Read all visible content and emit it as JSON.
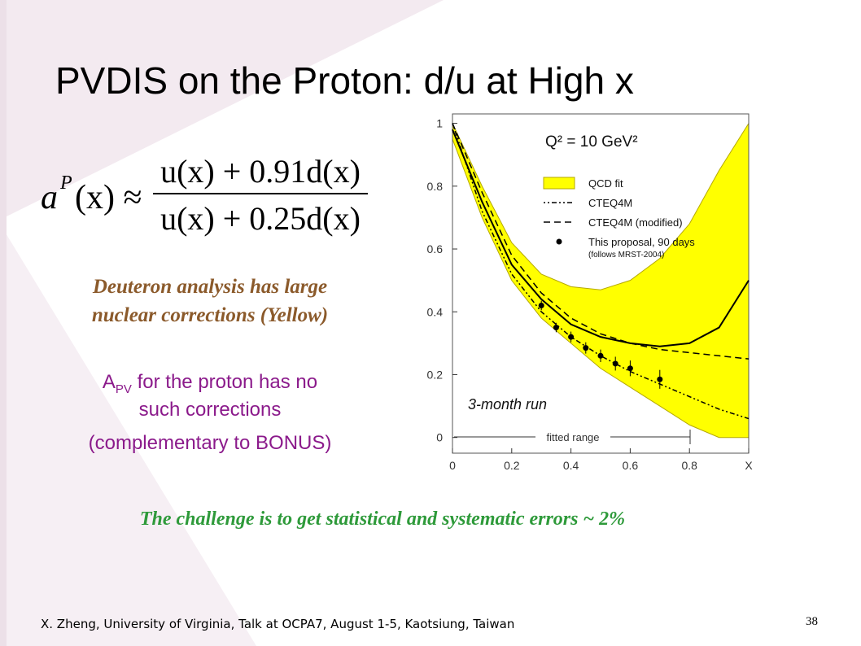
{
  "title": "PVDIS on the Proton: d/u at High x",
  "formula": {
    "lhs": "a",
    "lhs_sup": "P",
    "lhs_rest": "(x) ≈",
    "numerator": "u(x) + 0.91d(x)",
    "denominator": "u(x) + 0.25d(x)"
  },
  "deuteron_note": [
    "Deuteron analysis has large",
    "nuclear corrections (Yellow)"
  ],
  "proton_note": {
    "symbol": "A",
    "subscript": "PV",
    "lines": [
      " for the proton has no",
      "such corrections",
      "(complementary to BONUS)"
    ]
  },
  "challenge": "The challenge is to get statistical and systematic errors ~ 2%",
  "footer": "X. Zheng, University of Virginia,  Talk at OCPA7, August 1-5, Kaotsiung, Taiwan",
  "page_number": "38",
  "chart_data": {
    "type": "line",
    "annotation": "Q² = 10 GeV²",
    "run_label": "3-month run",
    "range_label": "fitted range",
    "x": [
      0,
      0.1,
      0.2,
      0.3,
      0.4,
      0.5,
      0.6,
      0.7,
      0.8,
      0.9,
      1.0
    ],
    "xlim": [
      0,
      1
    ],
    "ylim": [
      -0.05,
      1.03
    ],
    "xticks": [
      0,
      0.2,
      0.4,
      0.6,
      0.8,
      {
        "value": 1,
        "label": "X"
      }
    ],
    "yticks": [
      0,
      0.2,
      0.4,
      0.6,
      0.8,
      1
    ],
    "series": [
      {
        "name": "QCD fit",
        "style": "band",
        "color": "#ffff00",
        "values": [
          1.0,
          0.8,
          0.62,
          0.52,
          0.48,
          0.47,
          0.5,
          0.57,
          0.68,
          0.85,
          1.0
        ],
        "lower": [
          0.95,
          0.7,
          0.5,
          0.38,
          0.3,
          0.22,
          0.16,
          0.1,
          0.04,
          0,
          0
        ]
      },
      {
        "style": "solid",
        "color": "#000000",
        "values": [
          0.98,
          0.75,
          0.55,
          0.44,
          0.36,
          0.32,
          0.3,
          0.29,
          0.3,
          0.35,
          0.5
        ]
      },
      {
        "name": "CTEQ4M",
        "style": "dashdot",
        "color": "#000000",
        "values": [
          1.0,
          0.72,
          0.52,
          0.4,
          0.32,
          0.26,
          0.21,
          0.17,
          0.13,
          0.09,
          0.06
        ]
      },
      {
        "name": "CTEQ4M (modified)",
        "style": "dashed",
        "color": "#000000",
        "values": [
          1.0,
          0.78,
          0.58,
          0.46,
          0.38,
          0.33,
          0.3,
          0.28,
          0.27,
          0.26,
          0.25
        ]
      },
      {
        "name": "This proposal, 90 days",
        "note": "(follows MRST-2004)",
        "style": "points",
        "color": "#000000",
        "x": [
          0.3,
          0.35,
          0.4,
          0.45,
          0.5,
          0.55,
          0.6,
          0.7
        ],
        "values": [
          0.42,
          0.35,
          0.32,
          0.285,
          0.26,
          0.235,
          0.22,
          0.185
        ],
        "errors": [
          0.015,
          0.015,
          0.017,
          0.018,
          0.02,
          0.022,
          0.025,
          0.03
        ]
      }
    ]
  }
}
